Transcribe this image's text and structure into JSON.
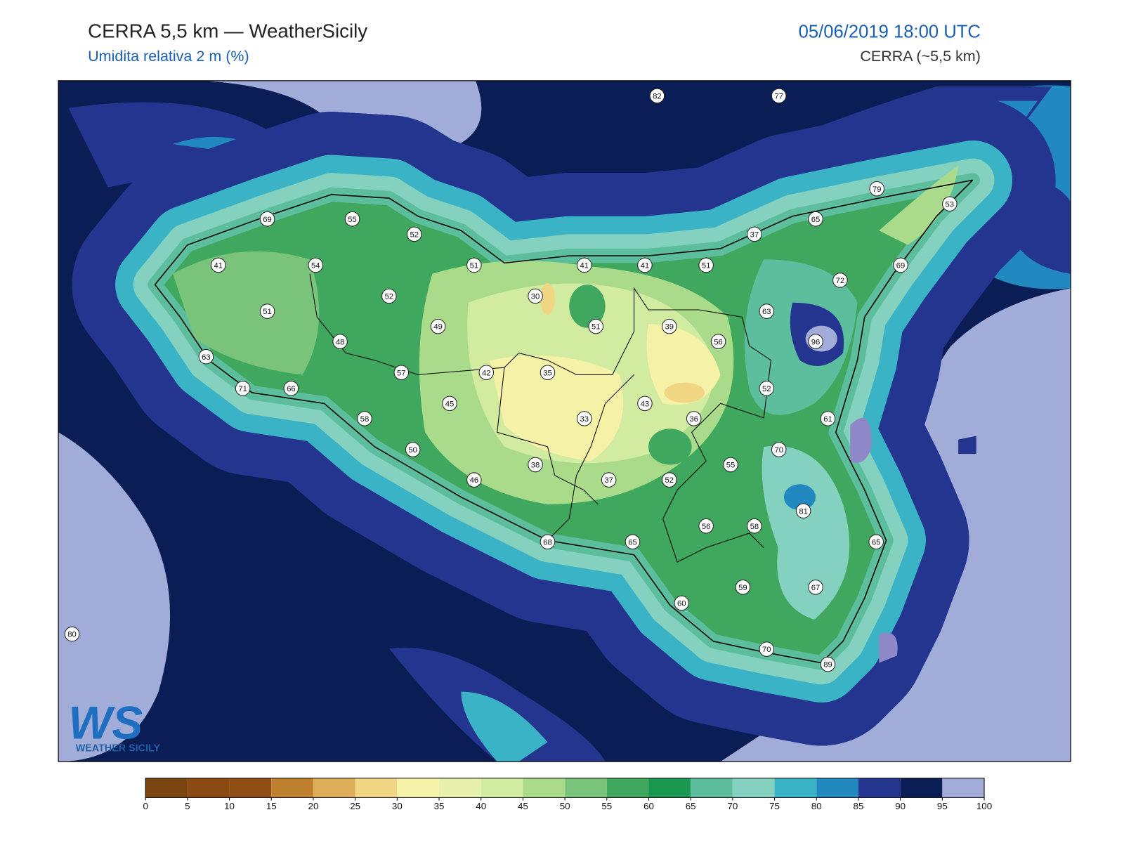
{
  "header": {
    "title": "CERRA 5,5 km — WeatherSicily",
    "subtitle": "Umidita relativa 2 m (%)",
    "datetime": "05/06/2019 18:00 UTC",
    "model": "CERRA (~5,5 km)"
  },
  "logo": {
    "mark": "WS",
    "name": "WEATHER SICILY"
  },
  "stations": [
    82,
    77,
    79,
    53,
    65,
    37,
    69,
    55,
    52,
    41,
    54,
    51,
    41,
    41,
    51,
    72,
    69,
    52,
    30,
    63,
    51,
    49,
    51,
    39,
    56,
    96,
    48,
    63,
    57,
    42,
    35,
    71,
    66,
    52,
    45,
    43,
    58,
    33,
    36,
    61,
    50,
    70,
    38,
    55,
    46,
    37,
    52,
    81,
    56,
    58,
    68,
    65,
    65,
    59,
    67,
    60,
    80,
    70,
    89
  ],
  "colorbar": {
    "ticks": [
      0,
      5,
      10,
      15,
      20,
      25,
      30,
      35,
      40,
      45,
      50,
      55,
      60,
      65,
      70,
      75,
      80,
      85,
      90,
      95,
      100
    ],
    "colors": [
      "#7a4510",
      "#8a4b12",
      "#8f4e14",
      "#c0812f",
      "#deae5b",
      "#f1d683",
      "#f5f2a8",
      "#e8f0ae",
      "#d1eba0",
      "#a9db8a",
      "#79c47a",
      "#3fa85e",
      "#1a9850",
      "#5dbe9e",
      "#84d1c0",
      "#3bb3c6",
      "#2189c0",
      "#24358f",
      "#0b1d55",
      "#a2acd9",
      "#8e88c8"
    ]
  }
}
